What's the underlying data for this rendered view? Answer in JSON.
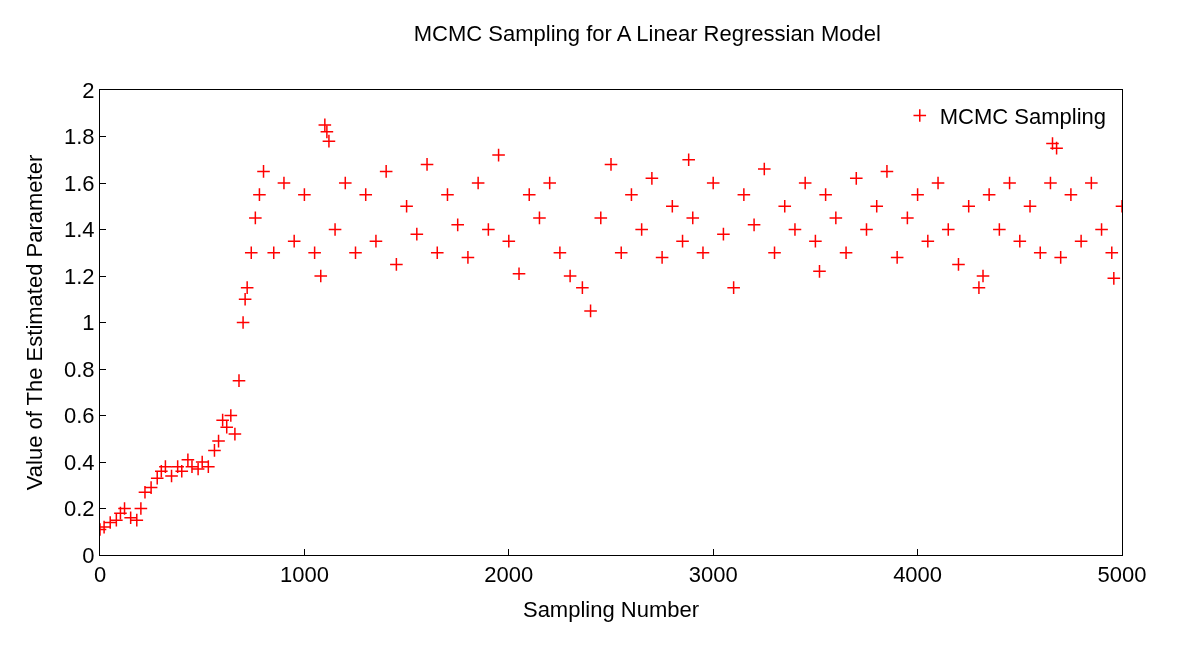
{
  "chart_data": {
    "type": "scatter",
    "title": "MCMC Sampling for A Linear Regressian Model",
    "xlabel": "Sampling Number",
    "ylabel": "Value of The Estimated Parameter",
    "xlim": [
      0,
      5000
    ],
    "xticks": [
      0,
      1000,
      2000,
      3000,
      4000,
      5000
    ],
    "ylim": [
      0,
      2
    ],
    "yticks": [
      0,
      0.2,
      0.4,
      0.6,
      0.8,
      1,
      1.2,
      1.4,
      1.6,
      1.8,
      2
    ],
    "legend": "top right",
    "marker": "cross",
    "series": [
      {
        "name": "MCMC Sampling",
        "color": "#ff0000",
        "x": [
          0,
          20,
          50,
          80,
          100,
          120,
          150,
          180,
          200,
          220,
          250,
          280,
          300,
          320,
          350,
          380,
          400,
          430,
          450,
          480,
          500,
          530,
          560,
          580,
          600,
          620,
          640,
          660,
          680,
          700,
          710,
          720,
          740,
          760,
          780,
          800,
          850,
          900,
          950,
          1000,
          1050,
          1080,
          1100,
          1110,
          1120,
          1150,
          1200,
          1250,
          1300,
          1350,
          1400,
          1450,
          1500,
          1550,
          1600,
          1650,
          1700,
          1750,
          1800,
          1850,
          1900,
          1950,
          2000,
          2050,
          2100,
          2150,
          2200,
          2250,
          2300,
          2360,
          2400,
          2450,
          2500,
          2550,
          2600,
          2650,
          2700,
          2750,
          2800,
          2850,
          2880,
          2900,
          2950,
          3000,
          3050,
          3100,
          3150,
          3200,
          3250,
          3300,
          3350,
          3400,
          3450,
          3500,
          3520,
          3550,
          3600,
          3650,
          3700,
          3750,
          3800,
          3850,
          3900,
          3950,
          4000,
          4050,
          4100,
          4150,
          4200,
          4250,
          4300,
          4320,
          4350,
          4400,
          4450,
          4500,
          4550,
          4600,
          4650,
          4660,
          4680,
          4700,
          4750,
          4800,
          4850,
          4900,
          4950,
          4960,
          5000
        ],
        "values": [
          0.11,
          0.12,
          0.14,
          0.15,
          0.18,
          0.2,
          0.16,
          0.15,
          0.2,
          0.27,
          0.29,
          0.33,
          0.36,
          0.38,
          0.34,
          0.38,
          0.36,
          0.41,
          0.38,
          0.37,
          0.4,
          0.38,
          0.45,
          0.49,
          0.58,
          0.55,
          0.6,
          0.52,
          0.75,
          1.0,
          1.1,
          1.15,
          1.3,
          1.45,
          1.55,
          1.65,
          1.3,
          1.6,
          1.35,
          1.55,
          1.3,
          1.2,
          1.85,
          1.82,
          1.78,
          1.4,
          1.6,
          1.3,
          1.55,
          1.35,
          1.65,
          1.25,
          1.5,
          1.38,
          1.68,
          1.3,
          1.55,
          1.42,
          1.28,
          1.6,
          1.4,
          1.72,
          1.35,
          1.21,
          1.55,
          1.45,
          1.6,
          1.3,
          1.2,
          1.15,
          1.05,
          1.45,
          1.68,
          1.3,
          1.55,
          1.4,
          1.62,
          1.28,
          1.5,
          1.35,
          1.7,
          1.45,
          1.3,
          1.6,
          1.38,
          1.15,
          1.55,
          1.42,
          1.66,
          1.3,
          1.5,
          1.4,
          1.6,
          1.35,
          1.22,
          1.55,
          1.45,
          1.3,
          1.62,
          1.4,
          1.5,
          1.65,
          1.28,
          1.45,
          1.55,
          1.35,
          1.6,
          1.4,
          1.25,
          1.5,
          1.15,
          1.2,
          1.55,
          1.4,
          1.6,
          1.35,
          1.5,
          1.3,
          1.6,
          1.77,
          1.75,
          1.28,
          1.55,
          1.35,
          1.6,
          1.4,
          1.3,
          1.19,
          1.5
        ]
      }
    ]
  }
}
